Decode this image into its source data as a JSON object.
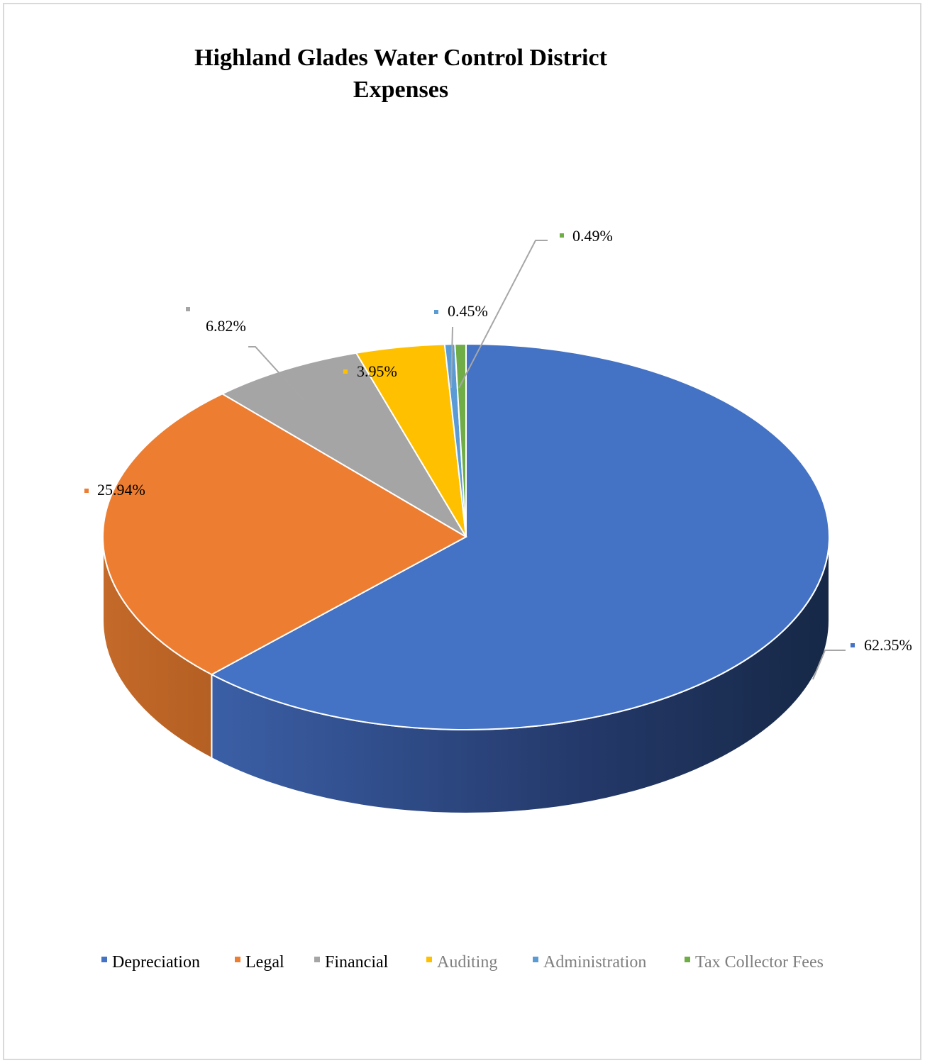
{
  "chart_data": {
    "type": "pie",
    "style": "3d",
    "title": "Highland Glades Water Control District Expenses",
    "title_lines": [
      "Highland Glades Water Control District",
      "Expenses"
    ],
    "legend_position": "bottom",
    "data_label_format": "percent",
    "slices": [
      {
        "name": "Depreciation",
        "value": 62.35,
        "label": "62.35%",
        "color": "#4472C4",
        "legend_text_color": "#000000"
      },
      {
        "name": "Legal",
        "value": 25.94,
        "label": "25.94%",
        "color": "#ED7D31",
        "legend_text_color": "#000000"
      },
      {
        "name": "Financial",
        "value": 6.82,
        "label": "6.82%",
        "color": "#A5A5A5",
        "legend_text_color": "#000000"
      },
      {
        "name": "Auditing",
        "value": 3.95,
        "label": "3.95%",
        "color": "#FFC000",
        "legend_text_color": "#7f7f7f"
      },
      {
        "name": "Administration",
        "value": 0.45,
        "label": "0.45%",
        "color": "#5B9BD5",
        "legend_text_color": "#7f7f7f"
      },
      {
        "name": "Tax Collector Fees",
        "value": 0.49,
        "label": "0.49%",
        "color": "#70AD47",
        "legend_text_color": "#7f7f7f"
      }
    ]
  }
}
